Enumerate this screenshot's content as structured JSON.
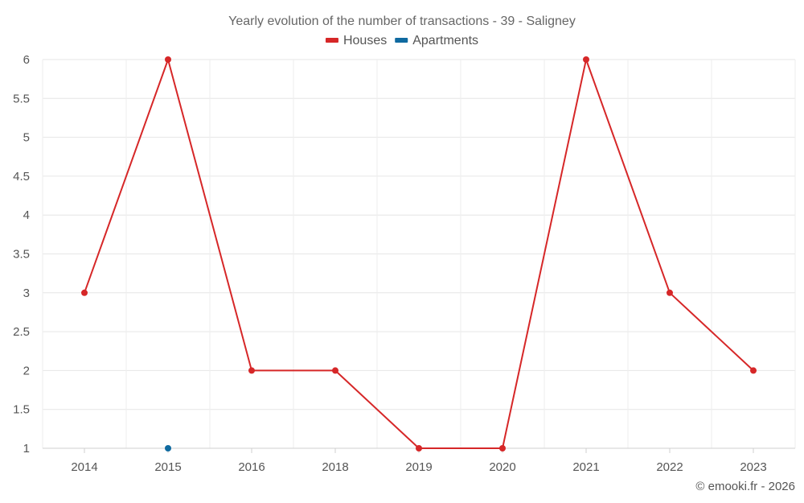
{
  "chart_data": {
    "type": "line",
    "title": "Yearly evolution of the number of transactions - 39 - Saligney",
    "categories": [
      "2014",
      "2015",
      "2016",
      "2018",
      "2019",
      "2020",
      "2021",
      "2022",
      "2023"
    ],
    "series": [
      {
        "name": "Houses",
        "color": "#d62728",
        "values": [
          3,
          6,
          2,
          2,
          1,
          1,
          6,
          3,
          2
        ]
      },
      {
        "name": "Apartments",
        "color": "#0f6aa0",
        "values": [
          null,
          1,
          null,
          null,
          null,
          null,
          null,
          null,
          null
        ]
      }
    ],
    "y_ticks": [
      "1",
      "1.5",
      "2",
      "2.5",
      "3",
      "3.5",
      "4",
      "4.5",
      "5",
      "5.5",
      "6"
    ],
    "ylim": [
      1,
      6
    ],
    "xlabel": "",
    "ylabel": "",
    "grid": true,
    "legend_position": "top-center"
  },
  "credit": "© emooki.fr - 2026"
}
